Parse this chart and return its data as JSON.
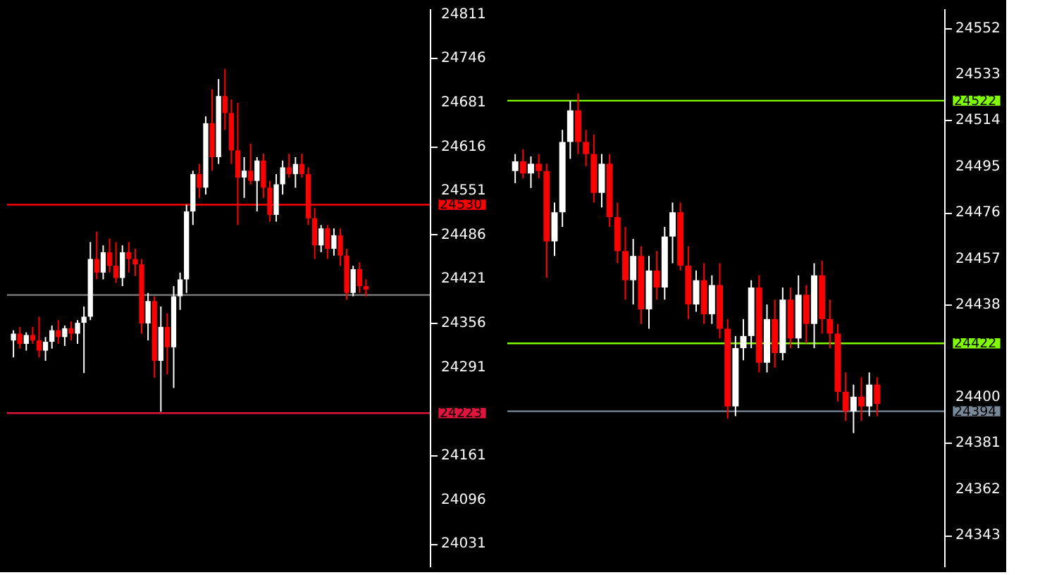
{
  "chart_data": [
    {
      "type": "candlestick",
      "categories": [
        null,
        null,
        null,
        null,
        null,
        null,
        null,
        null,
        null,
        null,
        null,
        null,
        null,
        null,
        null,
        null,
        null,
        null,
        null,
        null,
        null,
        null,
        null,
        null,
        null,
        null,
        null,
        null,
        null,
        null,
        null,
        null,
        null,
        null,
        null,
        null,
        null,
        null,
        null,
        null,
        null,
        null,
        null,
        null,
        null,
        null,
        null,
        null,
        null,
        null,
        null,
        null,
        null,
        null,
        null,
        null
      ],
      "ohlc": [
        [
          24330,
          24345,
          24305,
          24340
        ],
        [
          24340,
          24350,
          24318,
          24325
        ],
        [
          24325,
          24342,
          24315,
          24338
        ],
        [
          24338,
          24350,
          24325,
          24330
        ],
        [
          24330,
          24365,
          24305,
          24315
        ],
        [
          24315,
          24335,
          24300,
          24328
        ],
        [
          24328,
          24352,
          24318,
          24345
        ],
        [
          24345,
          24360,
          24325,
          24335
        ],
        [
          24335,
          24352,
          24322,
          24348
        ],
        [
          24348,
          24358,
          24330,
          24340
        ],
        [
          24340,
          24360,
          24325,
          24356
        ],
        [
          24356,
          24380,
          24282,
          24365
        ],
        [
          24365,
          24475,
          24360,
          24450
        ],
        [
          24450,
          24490,
          24420,
          24430
        ],
        [
          24430,
          24470,
          24420,
          24460
        ],
        [
          24460,
          24480,
          24430,
          24440
        ],
        [
          24440,
          24475,
          24415,
          24422
        ],
        [
          24422,
          24470,
          24410,
          24460
        ],
        [
          24460,
          24475,
          24430,
          24450
        ],
        [
          24450,
          24465,
          24425,
          24442
        ],
        [
          24442,
          24450,
          24340,
          24355
        ],
        [
          24355,
          24400,
          24330,
          24388
        ],
        [
          24388,
          24395,
          24275,
          24300
        ],
        [
          24300,
          24380,
          24225,
          24350
        ],
        [
          24350,
          24370,
          24280,
          24320
        ],
        [
          24320,
          24410,
          24260,
          24395
        ],
        [
          24395,
          24430,
          24375,
          24420
        ],
        [
          24420,
          24530,
          24400,
          24520
        ],
        [
          24520,
          24580,
          24500,
          24575
        ],
        [
          24575,
          24590,
          24540,
          24555
        ],
        [
          24555,
          24660,
          24545,
          24650
        ],
        [
          24650,
          24700,
          24580,
          24600
        ],
        [
          24600,
          24715,
          24590,
          24690
        ],
        [
          24690,
          24730,
          24640,
          24665
        ],
        [
          24665,
          24685,
          24590,
          24610
        ],
        [
          24610,
          24680,
          24500,
          24570
        ],
        [
          24570,
          24600,
          24540,
          24580
        ],
        [
          24580,
          24620,
          24560,
          24565
        ],
        [
          24565,
          24600,
          24520,
          24595
        ],
        [
          24595,
          24605,
          24540,
          24555
        ],
        [
          24555,
          24565,
          24505,
          24515
        ],
        [
          24515,
          24575,
          24505,
          24560
        ],
        [
          24560,
          24595,
          24545,
          24585
        ],
        [
          24585,
          24605,
          24570,
          24575
        ],
        [
          24575,
          24600,
          24555,
          24590
        ],
        [
          24590,
          24605,
          24570,
          24575
        ],
        [
          24575,
          24585,
          24500,
          24510
        ],
        [
          24510,
          24525,
          24450,
          24470
        ],
        [
          24470,
          24500,
          24460,
          24495
        ],
        [
          24495,
          24500,
          24450,
          24465
        ],
        [
          24465,
          24495,
          24455,
          24485
        ],
        [
          24485,
          24495,
          24440,
          24455
        ],
        [
          24455,
          24465,
          24390,
          24400
        ],
        [
          24400,
          24440,
          24395,
          24435
        ],
        [
          24435,
          24445,
          24400,
          24410
        ],
        [
          24410,
          24420,
          24395,
          24405
        ]
      ],
      "colors": [
        "#ffffff",
        "#ff0000",
        "#ffffff",
        "#ff0000",
        "#ff0000",
        "#ffffff",
        "#ffffff",
        "#ff0000",
        "#ffffff",
        "#ff0000",
        "#ffffff",
        "#ffffff",
        "#ffffff",
        "#ff0000",
        "#ffffff",
        "#ff0000",
        "#ff0000",
        "#ffffff",
        "#ff0000",
        "#ff0000",
        "#ff0000",
        "#ffffff",
        "#ff0000",
        "#ffffff",
        "#ff0000",
        "#ffffff",
        "#ffffff",
        "#ffffff",
        "#ffffff",
        "#ff0000",
        "#ffffff",
        "#ff0000",
        "#ffffff",
        "#ff0000",
        "#ff0000",
        "#ff0000",
        "#ffffff",
        "#ff0000",
        "#ffffff",
        "#ff0000",
        "#ff0000",
        "#ffffff",
        "#ffffff",
        "#ff0000",
        "#ffffff",
        "#ff0000",
        "#ff0000",
        "#ff0000",
        "#ffffff",
        "#ff0000",
        "#ffffff",
        "#ff0000",
        "#ff0000",
        "#ffffff",
        "#ff0000",
        "#ff0000"
      ],
      "ylim": [
        23997,
        24819
      ],
      "yticks": [
        24811,
        24746,
        24681,
        24616,
        24551,
        24486,
        24421,
        24356,
        24291,
        24161,
        24096,
        24031
      ],
      "tick_labels": "y",
      "ref_lines": [
        {
          "axis": "y",
          "value": 24530,
          "label": "24530",
          "color": "#ff0000"
        },
        {
          "axis": "y",
          "value": 24223,
          "label": "24223",
          "color": "#e0143c"
        },
        {
          "axis": "y",
          "value": 24397,
          "label": null,
          "color": "#808080"
        }
      ]
    },
    {
      "type": "candlestick",
      "categories": [
        null,
        null,
        null,
        null,
        null,
        null,
        null,
        null,
        null,
        null,
        null,
        null,
        null,
        null,
        null,
        null,
        null,
        null,
        null,
        null,
        null,
        null,
        null,
        null,
        null,
        null,
        null,
        null,
        null,
        null,
        null,
        null,
        null,
        null,
        null,
        null,
        null,
        null,
        null,
        null,
        null,
        null,
        null,
        null,
        null,
        null,
        null
      ],
      "ohlc": [
        [
          24493,
          24500,
          24488,
          24497
        ],
        [
          24497,
          24502,
          24490,
          24492
        ],
        [
          24492,
          24499,
          24486,
          24496
        ],
        [
          24496,
          24500,
          24490,
          24493
        ],
        [
          24493,
          24496,
          24449,
          24464
        ],
        [
          24464,
          24480,
          24458,
          24476
        ],
        [
          24476,
          24510,
          24470,
          24505
        ],
        [
          24505,
          24522,
          24498,
          24518
        ],
        [
          24518,
          24525,
          24500,
          24505
        ],
        [
          24505,
          24510,
          24495,
          24500
        ],
        [
          24500,
          24508,
          24480,
          24484
        ],
        [
          24484,
          24500,
          24478,
          24496
        ],
        [
          24496,
          24500,
          24470,
          24474
        ],
        [
          24474,
          24480,
          24455,
          24460
        ],
        [
          24460,
          24470,
          24440,
          24448
        ],
        [
          24448,
          24465,
          24438,
          24458
        ],
        [
          24458,
          24462,
          24430,
          24436
        ],
        [
          24436,
          24458,
          24428,
          24452
        ],
        [
          24452,
          24460,
          24440,
          24445
        ],
        [
          24445,
          24470,
          24440,
          24466
        ],
        [
          24466,
          24480,
          24455,
          24476
        ],
        [
          24476,
          24480,
          24452,
          24454
        ],
        [
          24454,
          24462,
          24432,
          24438
        ],
        [
          24438,
          24452,
          24435,
          24448
        ],
        [
          24448,
          24455,
          24430,
          24434
        ],
        [
          24434,
          24450,
          24430,
          24446
        ],
        [
          24446,
          24455,
          24424,
          24428
        ],
        [
          24428,
          24432,
          24391,
          24396
        ],
        [
          24396,
          24425,
          24392,
          24420
        ],
        [
          24420,
          24432,
          24415,
          24425
        ],
        [
          24425,
          24448,
          24420,
          24445
        ],
        [
          24445,
          24450,
          24410,
          24414
        ],
        [
          24414,
          24438,
          24410,
          24432
        ],
        [
          24432,
          24440,
          24412,
          24418
        ],
        [
          24418,
          24445,
          24415,
          24440
        ],
        [
          24440,
          24445,
          24420,
          24424
        ],
        [
          24424,
          24450,
          24420,
          24442
        ],
        [
          24442,
          24446,
          24422,
          24430
        ],
        [
          24430,
          24455,
          24420,
          24450
        ],
        [
          24450,
          24456,
          24426,
          24432
        ],
        [
          24432,
          24440,
          24420,
          24426
        ],
        [
          24426,
          24430,
          24398,
          24402
        ],
        [
          24402,
          24410,
          24390,
          24394
        ],
        [
          24394,
          24405,
          24385,
          24400
        ],
        [
          24400,
          24408,
          24390,
          24396
        ],
        [
          24396,
          24410,
          24392,
          24405
        ],
        [
          24405,
          24408,
          24392,
          24397
        ]
      ],
      "colors": [
        "#ffffff",
        "#ff0000",
        "#ffffff",
        "#ff0000",
        "#ff0000",
        "#ffffff",
        "#ffffff",
        "#ffffff",
        "#ff0000",
        "#ff0000",
        "#ff0000",
        "#ffffff",
        "#ff0000",
        "#ff0000",
        "#ff0000",
        "#ffffff",
        "#ff0000",
        "#ffffff",
        "#ff0000",
        "#ffffff",
        "#ffffff",
        "#ff0000",
        "#ff0000",
        "#ffffff",
        "#ff0000",
        "#ffffff",
        "#ff0000",
        "#ff0000",
        "#ffffff",
        "#ffffff",
        "#ffffff",
        "#ff0000",
        "#ffffff",
        "#ff0000",
        "#ffffff",
        "#ff0000",
        "#ffffff",
        "#ff0000",
        "#ffffff",
        "#ff0000",
        "#ff0000",
        "#ff0000",
        "#ff0000",
        "#ffffff",
        "#ff0000",
        "#ffffff",
        "#ff0000"
      ],
      "ylim": [
        24330,
        24560
      ],
      "yticks": [
        24552,
        24533,
        24514,
        24495,
        24476,
        24457,
        24438,
        24400,
        24381,
        24362,
        24343
      ],
      "tick_labels": "y",
      "ref_lines": [
        {
          "axis": "y",
          "value": 24522,
          "label": "24522",
          "color": "#7fff00"
        },
        {
          "axis": "y",
          "value": 24422,
          "label": "24422",
          "color": "#7fff00"
        },
        {
          "axis": "y",
          "value": 24394,
          "label": "24394",
          "color": "#778899"
        }
      ]
    }
  ]
}
